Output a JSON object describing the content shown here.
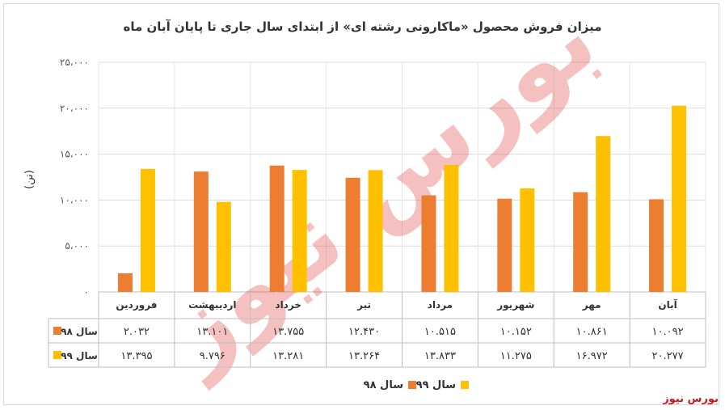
{
  "chart_data": {
    "type": "bar",
    "title": "میزان فروش محصول «ماکارونی رشته ای» از ابتدای سال جاری تا پایان آبان ماه",
    "ylabel": "(تن)",
    "ylim": [
      0,
      25000
    ],
    "yticks": [
      0,
      5000,
      10000,
      15000,
      20000,
      25000
    ],
    "ytick_labels": [
      "۰",
      "۵،۰۰۰",
      "۱۰،۰۰۰",
      "۱۵،۰۰۰",
      "۲۰،۰۰۰",
      "۲۵،۰۰۰"
    ],
    "categories": [
      "فروردین",
      "اردیبهشت",
      "خرداد",
      "تیر",
      "مرداد",
      "شهریور",
      "مهر",
      "آبان"
    ],
    "grid": true,
    "legend_position": "bottom",
    "series": [
      {
        "name": "سال ۹۸",
        "color": "#ed7d31",
        "values": [
          2032,
          13101,
          13755,
          12430,
          10515,
          10152,
          10861,
          10092
        ],
        "labels": [
          "۲.۰۳۲",
          "۱۳.۱۰۱",
          "۱۳.۷۵۵",
          "۱۲.۴۳۰",
          "۱۰.۵۱۵",
          "۱۰.۱۵۲",
          "۱۰.۸۶۱",
          "۱۰.۰۹۲"
        ]
      },
      {
        "name": "سال ۹۹",
        "color": "#ffc000",
        "values": [
          13395,
          9796,
          13281,
          13264,
          13833,
          11275,
          16972,
          20277
        ],
        "labels": [
          "۱۳.۳۹۵",
          "۹.۷۹۶",
          "۱۳.۲۸۱",
          "۱۳.۲۶۴",
          "۱۳.۸۳۳",
          "۱۱.۲۷۵",
          "۱۶.۹۷۲",
          "۲۰.۲۷۷"
        ]
      }
    ]
  },
  "watermark": "بورس نیوز",
  "brand": "بورس نیوز"
}
